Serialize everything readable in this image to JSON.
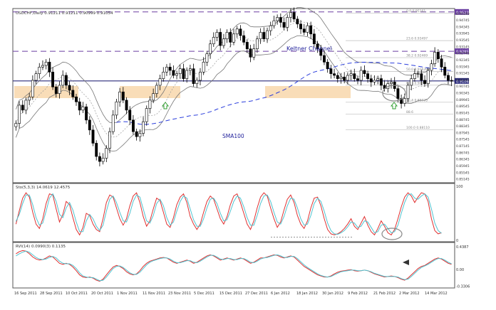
{
  "chart_data": [
    {
      "type": "candlestick",
      "title": "USDCHF,Daily  0.91211 0.91211 0.90999 0.91054",
      "y_ticks": [
        "0.95140",
        "0.94745",
        "0.94345",
        "0.93945",
        "0.93545",
        "0.93145",
        "0.92745",
        "0.92345",
        "0.91945",
        "0.91545",
        "0.91145",
        "0.90745",
        "0.90345",
        "0.89945",
        "0.89545",
        "0.89145",
        "0.88745",
        "0.88345",
        "0.87945",
        "0.87545",
        "0.87145",
        "0.86745",
        "0.86345",
        "0.85945",
        "0.85545",
        "0.85145"
      ],
      "ylim": [
        0.85,
        0.9535
      ],
      "x_ticks": [
        "16 Sep 2011",
        "28 Sep 2011",
        "10 Oct 2011",
        "20 Oct 2011",
        "1 Nov 2011",
        "11 Nov 2011",
        "23 Nov 2011",
        "5 Dec 2011",
        "15 Dec 2011",
        "27 Dec 2011",
        "6 Jan 2012",
        "18 Jan 2012",
        "30 Jan 2012",
        "9 Feb 2012",
        "21 Feb 2012",
        "2 Mar 2012",
        "14 Mar 2012"
      ],
      "horizontal_levels": [
        {
          "price_label": "0.95230",
          "kind": "dashed",
          "color": "#6a3ea1"
        },
        {
          "price_label": "0.92855",
          "kind": "dashed",
          "color": "#6a3ea1"
        },
        {
          "price_label": "0.91063",
          "kind": "solid",
          "color": "#2a2a7a"
        }
      ],
      "fib_labels": [
        "0.0  0.95161",
        "23.6  0.93497",
        "38.2  0.92469",
        "50.0  0.91639",
        "61.8  0.90806",
        "76.4  0.89775",
        "88.6",
        "100.0  0.88110"
      ],
      "annotations": [
        "Keltner Channel",
        "SMA100"
      ],
      "close": [
        0.885,
        0.896,
        0.893,
        0.899,
        0.901,
        0.911,
        0.915,
        0.919,
        0.92,
        0.922,
        0.916,
        0.907,
        0.903,
        0.908,
        0.914,
        0.908,
        0.905,
        0.901,
        0.898,
        0.893,
        0.895,
        0.887,
        0.881,
        0.873,
        0.865,
        0.862,
        0.864,
        0.87,
        0.88,
        0.89,
        0.898,
        0.904,
        0.899,
        0.893,
        0.887,
        0.88,
        0.877,
        0.879,
        0.886,
        0.894,
        0.899,
        0.903,
        0.908,
        0.912,
        0.916,
        0.919,
        0.917,
        0.914,
        0.915,
        0.918,
        0.912,
        0.917,
        0.918,
        0.909,
        0.911,
        0.916,
        0.922,
        0.927,
        0.933,
        0.937,
        0.94,
        0.932,
        0.936,
        0.94,
        0.934,
        0.939,
        0.942,
        0.938,
        0.934,
        0.93,
        0.925,
        0.93,
        0.936,
        0.94,
        0.936,
        0.941,
        0.944,
        0.947,
        0.949,
        0.946,
        0.943,
        0.949,
        0.952,
        0.948,
        0.945,
        0.942,
        0.94,
        0.944,
        0.939,
        0.933,
        0.93,
        0.926,
        0.922,
        0.918,
        0.915,
        0.914,
        0.912,
        0.913,
        0.911,
        0.914,
        0.915,
        0.912,
        0.911,
        0.917,
        0.915,
        0.912,
        0.91,
        0.911,
        0.912,
        0.908,
        0.906,
        0.909,
        0.91,
        0.906,
        0.9,
        0.897,
        0.9,
        0.908,
        0.912,
        0.915,
        0.915,
        0.911,
        0.909,
        0.917,
        0.921,
        0.928,
        0.924,
        0.919,
        0.914,
        0.911,
        0.9105
      ],
      "ohlc_note": "High/low wicks are derived from close values by the drawing script."
    },
    {
      "type": "line",
      "title": "Sto(5,3,3) 14.0619 12.4575",
      "ylim": [
        0,
        100
      ],
      "y_ticks": [
        "100",
        "0"
      ],
      "series": [
        {
          "color": "#e03030",
          "values": [
            30,
            55,
            78,
            88,
            80,
            52,
            30,
            22,
            40,
            68,
            86,
            84,
            58,
            34,
            48,
            72,
            66,
            42,
            20,
            10,
            24,
            50,
            46,
            30,
            20,
            16,
            40,
            70,
            84,
            80,
            60,
            40,
            28,
            40,
            64,
            82,
            88,
            70,
            44,
            26,
            36,
            58,
            78,
            74,
            52,
            30,
            24,
            42,
            66,
            80,
            86,
            70,
            44,
            30,
            20,
            30,
            52,
            72,
            82,
            76,
            58,
            40,
            30,
            44,
            66,
            82,
            86,
            70,
            50,
            30,
            20,
            36,
            60,
            80,
            88,
            82,
            60,
            40,
            24,
            34,
            56,
            76,
            84,
            70,
            46,
            30,
            22,
            36,
            60,
            78,
            80,
            64,
            40,
            20,
            12,
            10,
            12,
            16,
            22,
            30,
            40,
            26,
            20,
            32,
            44,
            28,
            16,
            10,
            22,
            36,
            26,
            14,
            10,
            20,
            40,
            62,
            80,
            88,
            82,
            70,
            80,
            88,
            86,
            72,
            40,
            18,
            12,
            14
          ]
        },
        {
          "color": "#4fc3d0",
          "values": [
            35,
            48,
            68,
            84,
            84,
            66,
            42,
            28,
            32,
            54,
            78,
            86,
            72,
            48,
            42,
            60,
            70,
            56,
            34,
            16,
            16,
            36,
            48,
            40,
            26,
            18,
            28,
            54,
            76,
            82,
            70,
            52,
            36,
            34,
            50,
            72,
            84,
            80,
            58,
            36,
            32,
            46,
            68,
            76,
            64,
            42,
            28,
            34,
            54,
            72,
            82,
            78,
            58,
            38,
            26,
            26,
            40,
            60,
            76,
            78,
            68,
            50,
            36,
            38,
            54,
            72,
            82,
            78,
            62,
            42,
            28,
            28,
            46,
            68,
            82,
            84,
            72,
            52,
            34,
            30,
            44,
            64,
            78,
            76,
            60,
            40,
            28,
            30,
            46,
            68,
            78,
            72,
            54,
            32,
            18,
            12,
            11,
            14,
            18,
            25,
            34,
            32,
            24,
            26,
            36,
            34,
            24,
            14,
            16,
            28,
            30,
            22,
            14,
            16,
            28,
            50,
            70,
            84,
            86,
            78,
            76,
            82,
            86,
            80,
            58,
            32,
            18,
            13
          ]
        }
      ]
    },
    {
      "type": "line",
      "title": "RVI(14) 0.0990(3) 0.1135",
      "ylim": [
        -0.32,
        0.46
      ],
      "y_ticks": [
        "0.4387",
        "0.00",
        "-0.3306"
      ],
      "series": [
        {
          "color": "#e03030",
          "values": [
            0.3,
            0.34,
            0.36,
            0.35,
            0.3,
            0.24,
            0.2,
            0.18,
            0.19,
            0.22,
            0.26,
            0.24,
            0.18,
            0.12,
            0.1,
            0.12,
            0.1,
            0.05,
            -0.02,
            -0.1,
            -0.14,
            -0.15,
            -0.14,
            -0.16,
            -0.2,
            -0.22,
            -0.18,
            -0.1,
            -0.02,
            0.05,
            0.08,
            0.06,
            0.02,
            -0.04,
            -0.08,
            -0.1,
            -0.08,
            -0.02,
            0.06,
            0.12,
            0.16,
            0.18,
            0.2,
            0.22,
            0.23,
            0.22,
            0.18,
            0.14,
            0.12,
            0.14,
            0.16,
            0.18,
            0.16,
            0.12,
            0.14,
            0.18,
            0.22,
            0.26,
            0.28,
            0.26,
            0.22,
            0.18,
            0.2,
            0.22,
            0.2,
            0.18,
            0.2,
            0.22,
            0.2,
            0.16,
            0.12,
            0.14,
            0.18,
            0.22,
            0.22,
            0.24,
            0.26,
            0.28,
            0.27,
            0.24,
            0.22,
            0.24,
            0.26,
            0.24,
            0.18,
            0.12,
            0.06,
            0.02,
            -0.02,
            -0.06,
            -0.1,
            -0.12,
            -0.14,
            -0.14,
            -0.12,
            -0.08,
            -0.05,
            -0.03,
            -0.02,
            -0.01,
            0.0,
            -0.02,
            -0.03,
            -0.02,
            -0.01,
            -0.02,
            -0.05,
            -0.08,
            -0.1,
            -0.12,
            -0.14,
            -0.13,
            -0.12,
            -0.13,
            -0.15,
            -0.18,
            -0.2,
            -0.16,
            -0.1,
            -0.04,
            0.02,
            0.06,
            0.08,
            0.12,
            0.16,
            0.2,
            0.22,
            0.2,
            0.16,
            0.12,
            0.1
          ]
        },
        {
          "color": "#4fc3d0",
          "values": [
            0.26,
            0.3,
            0.33,
            0.35,
            0.33,
            0.28,
            0.23,
            0.2,
            0.19,
            0.2,
            0.23,
            0.25,
            0.22,
            0.16,
            0.12,
            0.11,
            0.11,
            0.08,
            0.02,
            -0.06,
            -0.12,
            -0.14,
            -0.15,
            -0.15,
            -0.18,
            -0.21,
            -0.2,
            -0.14,
            -0.06,
            0.02,
            0.06,
            0.07,
            0.04,
            -0.01,
            -0.06,
            -0.09,
            -0.09,
            -0.05,
            0.02,
            0.09,
            0.14,
            0.17,
            0.19,
            0.21,
            0.22,
            0.22,
            0.2,
            0.16,
            0.13,
            0.13,
            0.15,
            0.17,
            0.17,
            0.14,
            0.13,
            0.16,
            0.2,
            0.24,
            0.27,
            0.27,
            0.24,
            0.2,
            0.19,
            0.21,
            0.21,
            0.19,
            0.19,
            0.21,
            0.21,
            0.18,
            0.14,
            0.13,
            0.16,
            0.2,
            0.22,
            0.23,
            0.25,
            0.27,
            0.28,
            0.26,
            0.23,
            0.23,
            0.25,
            0.25,
            0.21,
            0.15,
            0.09,
            0.04,
            0.0,
            -0.04,
            -0.08,
            -0.11,
            -0.13,
            -0.14,
            -0.13,
            -0.1,
            -0.07,
            -0.04,
            -0.03,
            -0.02,
            -0.01,
            -0.01,
            -0.02,
            -0.02,
            -0.01,
            -0.02,
            -0.04,
            -0.07,
            -0.09,
            -0.11,
            -0.13,
            -0.13,
            -0.13,
            -0.13,
            -0.14,
            -0.17,
            -0.19,
            -0.18,
            -0.13,
            -0.07,
            -0.01,
            0.04,
            0.07,
            0.1,
            0.14,
            0.18,
            0.21,
            0.21,
            0.18,
            0.14,
            0.11
          ]
        }
      ]
    }
  ]
}
